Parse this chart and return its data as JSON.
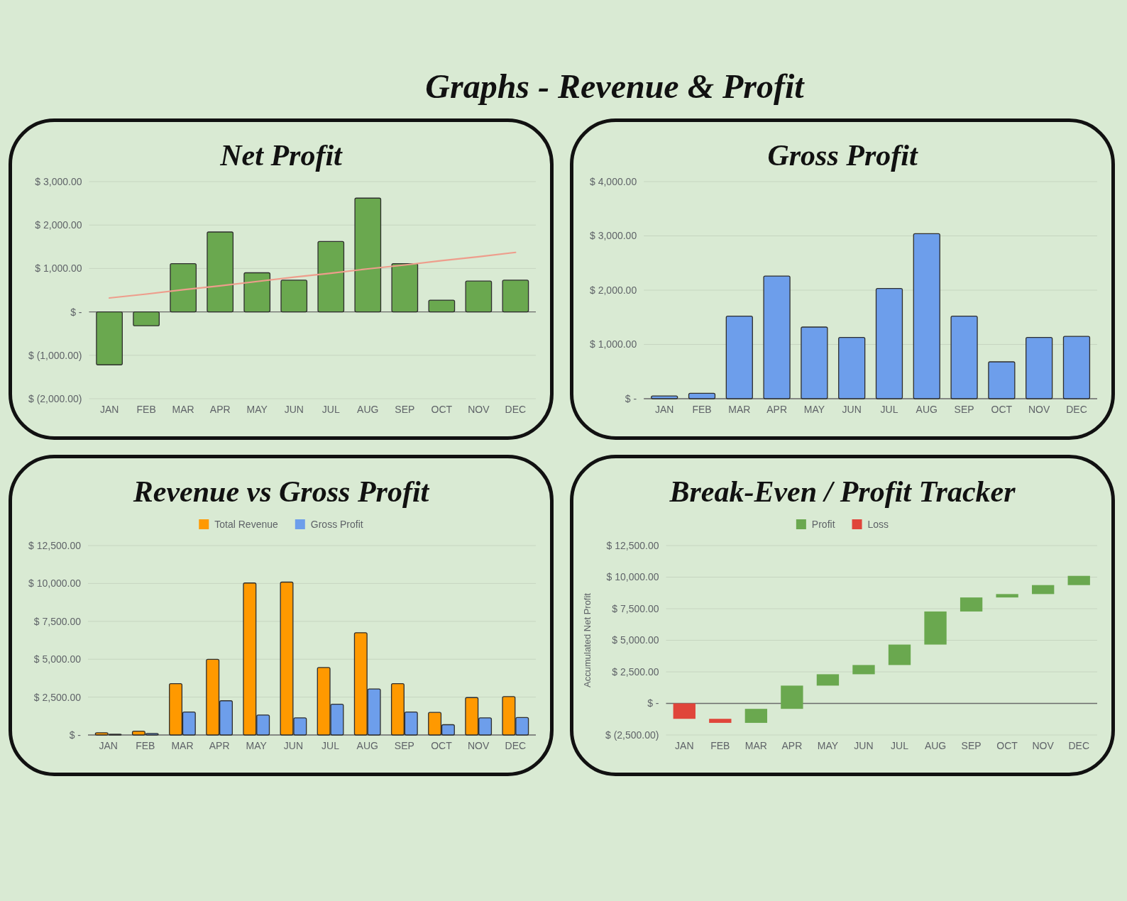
{
  "chart_data": [
    {
      "type": "other",
      "title": "Graphs - Revenue & Profit"
    },
    {
      "type": "bar",
      "title": "Net Profit",
      "categories": [
        "JAN",
        "FEB",
        "MAR",
        "APR",
        "MAY",
        "JUN",
        "JUL",
        "AUG",
        "SEP",
        "OCT",
        "NOV",
        "DEC"
      ],
      "series": [
        {
          "color": "#6aa84f",
          "values": [
            -1220,
            -320,
            1110,
            1840,
            900,
            730,
            1620,
            2620,
            1110,
            270,
            710,
            730
          ]
        },
        {
          "type": "line",
          "color": "#ee9d8c",
          "values": [
            320,
            410,
            510,
            600,
            700,
            800,
            890,
            990,
            1080,
            1180,
            1270,
            1370
          ]
        }
      ],
      "ylim": [
        -2000,
        3000
      ],
      "yticks": [
        {
          "value": -2000,
          "label": "$ (2,000.00)"
        },
        {
          "value": -1000,
          "label": "$ (1,000.00)"
        },
        {
          "value": 0,
          "label": "$ -"
        },
        {
          "value": 1000,
          "label": "$ 1,000.00"
        },
        {
          "value": 2000,
          "label": "$ 2,000.00"
        },
        {
          "value": 3000,
          "label": "$ 3,000.00"
        }
      ],
      "grid": "y"
    },
    {
      "type": "bar",
      "title": "Gross Profit",
      "categories": [
        "JAN",
        "FEB",
        "MAR",
        "APR",
        "MAY",
        "JUN",
        "JUL",
        "AUG",
        "SEP",
        "OCT",
        "NOV",
        "DEC"
      ],
      "values": [
        50,
        100,
        1520,
        2260,
        1320,
        1130,
        2030,
        3040,
        1520,
        680,
        1130,
        1150
      ],
      "color": "#6d9eeb",
      "ylim": [
        0,
        4000
      ],
      "yticks": [
        {
          "value": 0,
          "label": "$ -"
        },
        {
          "value": 1000,
          "label": "$ 1,000.00"
        },
        {
          "value": 2000,
          "label": "$ 2,000.00"
        },
        {
          "value": 3000,
          "label": "$ 3,000.00"
        },
        {
          "value": 4000,
          "label": "$ 4,000.00"
        }
      ],
      "grid": "y"
    },
    {
      "type": "bar",
      "title": "Revenue vs Gross Profit",
      "categories": [
        "JAN",
        "FEB",
        "MAR",
        "APR",
        "MAY",
        "JUN",
        "JUL",
        "AUG",
        "SEP",
        "OCT",
        "NOV",
        "DEC"
      ],
      "series": [
        {
          "name": "Total Revenue",
          "color": "#ff9900",
          "values": [
            150,
            250,
            3390,
            4990,
            10030,
            10090,
            4450,
            6750,
            3390,
            1490,
            2470,
            2530
          ]
        },
        {
          "name": "Gross Profit",
          "color": "#6d9eeb",
          "values": [
            50,
            100,
            1520,
            2260,
            1320,
            1130,
            2030,
            3040,
            1520,
            680,
            1130,
            1150
          ]
        }
      ],
      "legend": "top",
      "ylim": [
        0,
        12500
      ],
      "yticks": [
        {
          "value": 0,
          "label": "$ -"
        },
        {
          "value": 2500,
          "label": "$ 2,500.00"
        },
        {
          "value": 5000,
          "label": "$ 5,000.00"
        },
        {
          "value": 7500,
          "label": "$ 7,500.00"
        },
        {
          "value": 10000,
          "label": "$ 10,000.00"
        },
        {
          "value": 12500,
          "label": "$ 12,500.00"
        }
      ],
      "grid": "y"
    },
    {
      "type": "bar",
      "title": "Break-Even / Profit Tracker",
      "ylabel": "Accumulated Net Profit",
      "categories": [
        "JAN",
        "FEB",
        "MAR",
        "APR",
        "MAY",
        "JUN",
        "JUL",
        "AUG",
        "SEP",
        "OCT",
        "NOV",
        "DEC"
      ],
      "series": [
        {
          "name": "Profit",
          "color": "#6aa84f",
          "base": [
            null,
            null,
            -1540,
            -430,
            1410,
            2310,
            3040,
            4660,
            7280,
            8390,
            8660,
            9370
          ],
          "values": [
            null,
            null,
            1110,
            1840,
            900,
            730,
            1620,
            2620,
            1110,
            270,
            710,
            730
          ]
        },
        {
          "name": "Loss",
          "color": "#e0453a",
          "base": [
            0,
            -1220,
            null,
            null,
            null,
            null,
            null,
            null,
            null,
            null,
            null,
            null
          ],
          "values": [
            -1220,
            -320,
            null,
            null,
            null,
            null,
            null,
            null,
            null,
            null,
            null,
            null
          ]
        }
      ],
      "legend": "top",
      "ylim": [
        -2500,
        12500
      ],
      "yticks": [
        {
          "value": -2500,
          "label": "$ (2,500.00)"
        },
        {
          "value": 0,
          "label": "$ -"
        },
        {
          "value": 2500,
          "label": "$ 2,500.00"
        },
        {
          "value": 5000,
          "label": "$ 5,000.00"
        },
        {
          "value": 7500,
          "label": "$ 7,500.00"
        },
        {
          "value": 10000,
          "label": "$ 10,000.00"
        },
        {
          "value": 12500,
          "label": "$ 12,500.00"
        }
      ],
      "grid": "y"
    }
  ]
}
